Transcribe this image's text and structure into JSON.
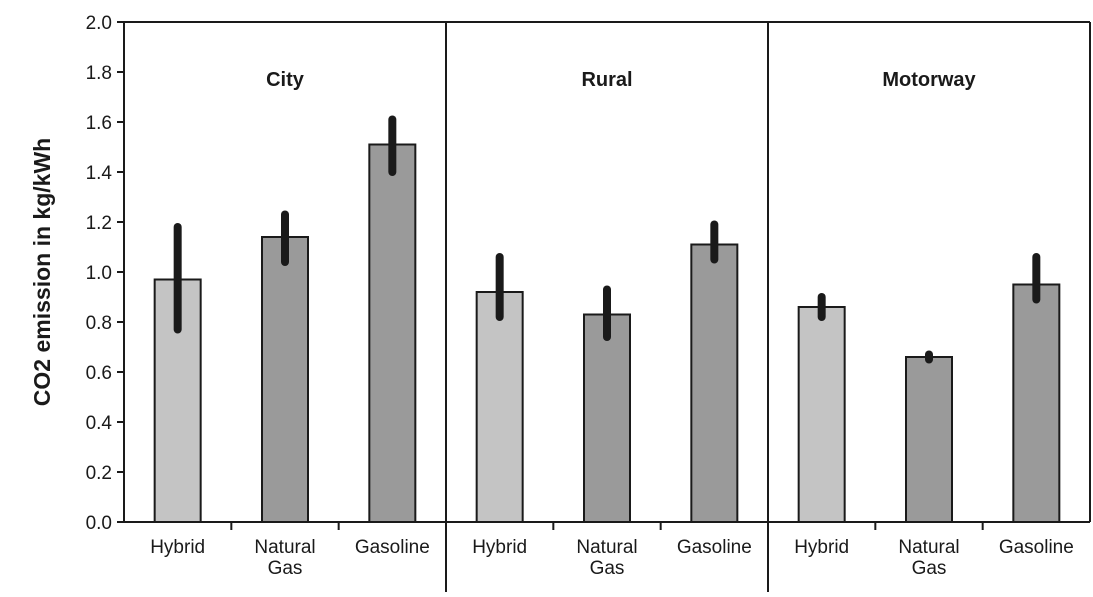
{
  "chart_data": {
    "type": "bar",
    "ylabel": "CO2 emission in kg/kWh",
    "ylim": [
      0,
      2.0
    ],
    "yticks": [
      "0.0",
      "0.2",
      "0.4",
      "0.6",
      "0.8",
      "1.0",
      "1.2",
      "1.4",
      "1.6",
      "1.8",
      "2.0"
    ],
    "grid": false,
    "colors": {
      "Hybrid": "#c4c4c4",
      "Natural Gas": "#9a9a9a",
      "Gasoline": "#9a9a9a",
      "error_bar": "#1a1a1a"
    },
    "panels": [
      {
        "title": "City",
        "categories": [
          "Hybrid",
          "Natural Gas",
          "Gasoline"
        ],
        "category_lines": [
          [
            "Hybrid"
          ],
          [
            "Natural",
            "Gas"
          ],
          [
            "Gasoline"
          ]
        ],
        "values": [
          0.97,
          1.14,
          1.51
        ],
        "error_low": [
          0.77,
          1.04,
          1.4
        ],
        "error_high": [
          1.18,
          1.23,
          1.61
        ]
      },
      {
        "title": "Rural",
        "categories": [
          "Hybrid",
          "Natural Gas",
          "Gasoline"
        ],
        "category_lines": [
          [
            "Hybrid"
          ],
          [
            "Natural",
            "Gas"
          ],
          [
            "Gasoline"
          ]
        ],
        "values": [
          0.92,
          0.83,
          1.11
        ],
        "error_low": [
          0.82,
          0.74,
          1.05
        ],
        "error_high": [
          1.06,
          0.93,
          1.19
        ]
      },
      {
        "title": "Motorway",
        "categories": [
          "Hybrid",
          "Natural Gas",
          "Gasoline"
        ],
        "category_lines": [
          [
            "Hybrid"
          ],
          [
            "Natural",
            "Gas"
          ],
          [
            "Gasoline"
          ]
        ],
        "values": [
          0.86,
          0.66,
          0.95
        ],
        "error_low": [
          0.82,
          0.65,
          0.89
        ],
        "error_high": [
          0.9,
          0.67,
          1.06
        ]
      }
    ]
  }
}
